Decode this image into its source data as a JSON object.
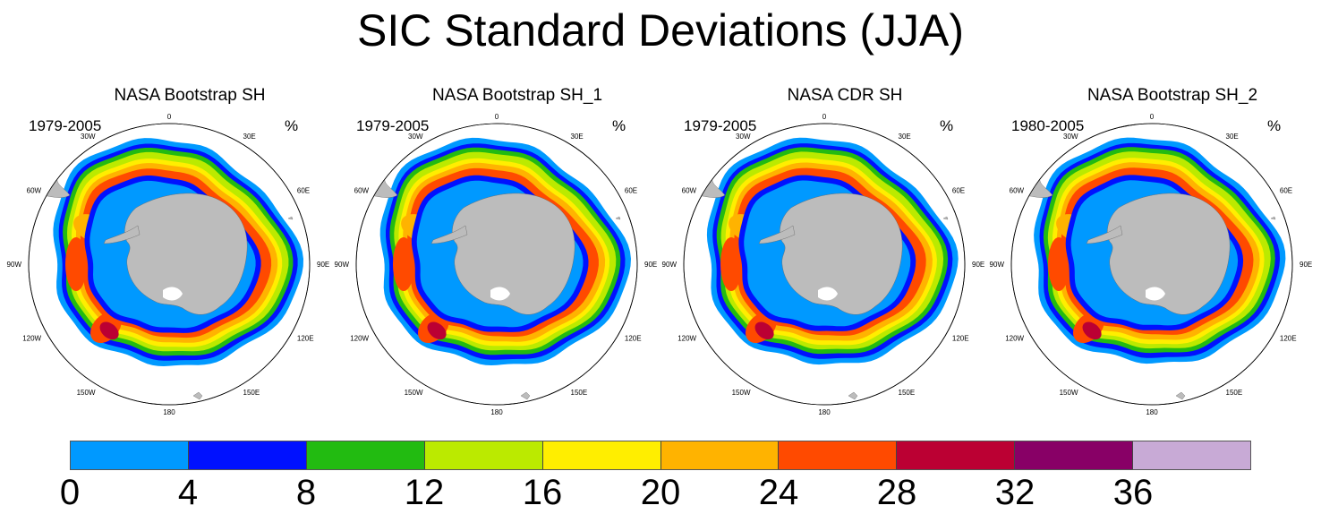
{
  "title": "SIC Standard Deviations (JJA)",
  "panels": [
    {
      "title": "NASA Bootstrap SH",
      "period": "1979-2005",
      "unit": "%"
    },
    {
      "title": "NASA Bootstrap SH_1",
      "period": "1979-2005",
      "unit": "%"
    },
    {
      "title": "NASA CDR SH",
      "period": "1979-2005",
      "unit": "%"
    },
    {
      "title": "NASA Bootstrap SH_2",
      "period": "1980-2005",
      "unit": "%"
    }
  ],
  "longitude_labels": [
    "0",
    "30E",
    "60E",
    "90E",
    "120E",
    "150E",
    "180",
    "150W",
    "120W",
    "90W",
    "60W",
    "30W"
  ],
  "colorbar": {
    "ticks": [
      "0",
      "4",
      "8",
      "12",
      "16",
      "20",
      "24",
      "28",
      "32",
      "36"
    ],
    "colors": [
      "#0099ff",
      "#0011ff",
      "#22bb11",
      "#bbea00",
      "#ffee00",
      "#ffb300",
      "#ff4a00",
      "#bb0033",
      "#880066",
      "#c8aad6"
    ]
  },
  "map_colors": {
    "land": "#bcbcbc",
    "ocean": "#ffffff",
    "band_colors": [
      "#0099ff",
      "#0011ff",
      "#22bb11",
      "#bbea00",
      "#ffee00",
      "#ffb300",
      "#ff4a00",
      "#bb0033"
    ]
  }
}
